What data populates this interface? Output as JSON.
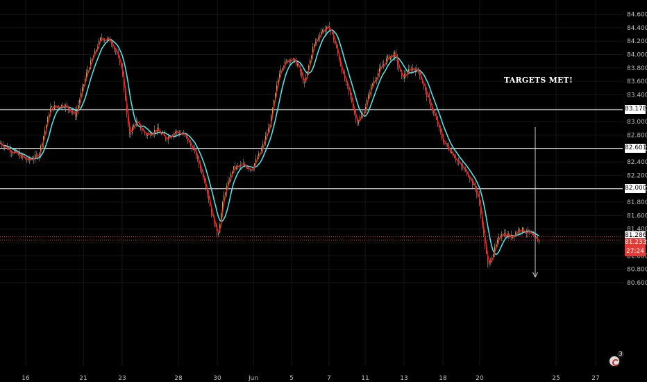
{
  "chart_data": {
    "type": "candlestick",
    "title": "",
    "xlabel": "",
    "ylabel": "",
    "ylim": [
      80.46,
      84.68
    ],
    "grid": true,
    "x_tick_labels": [
      "16",
      "21",
      "23",
      "28",
      "30",
      "Jun",
      "5",
      "7",
      "11",
      "13",
      "18",
      "20",
      "25",
      "27"
    ],
    "y_tick_labels": [
      "84.600",
      "84.400",
      "84.200",
      "84.000",
      "83.800",
      "83.600",
      "83.400",
      "83.200",
      "83.000",
      "82.800",
      "82.600",
      "82.400",
      "82.200",
      "82.000",
      "81.800",
      "81.600",
      "81.400",
      "81.200",
      "81.000",
      "80.800",
      "80.600"
    ],
    "horizontal_levels": [
      83.178,
      82.601,
      82.0
    ],
    "level_labels": [
      "83.178",
      "82.601",
      "82.000"
    ],
    "red_lines": [
      81.286,
      81.233
    ],
    "price_tags": {
      "upper": "81.286",
      "current": "81.233",
      "countdown": "27:24"
    },
    "annotation": "TARGETS MET!",
    "path_waypoints": [
      [
        0,
        82.68
      ],
      [
        18,
        82.55
      ],
      [
        40,
        82.42
      ],
      [
        55,
        82.5
      ],
      [
        72,
        83.2
      ],
      [
        92,
        83.25
      ],
      [
        108,
        83.1
      ],
      [
        125,
        83.75
      ],
      [
        145,
        84.25
      ],
      [
        160,
        84.2
      ],
      [
        175,
        83.8
      ],
      [
        185,
        82.8
      ],
      [
        195,
        83.0
      ],
      [
        210,
        82.8
      ],
      [
        225,
        82.88
      ],
      [
        238,
        82.75
      ],
      [
        252,
        82.85
      ],
      [
        265,
        82.8
      ],
      [
        280,
        82.55
      ],
      [
        295,
        82.1
      ],
      [
        305,
        81.6
      ],
      [
        313,
        81.3
      ],
      [
        322,
        81.9
      ],
      [
        335,
        82.3
      ],
      [
        350,
        82.35
      ],
      [
        362,
        82.3
      ],
      [
        375,
        82.55
      ],
      [
        388,
        82.95
      ],
      [
        403,
        83.8
      ],
      [
        418,
        83.95
      ],
      [
        428,
        83.85
      ],
      [
        438,
        83.55
      ],
      [
        450,
        84.1
      ],
      [
        462,
        84.35
      ],
      [
        475,
        84.4
      ],
      [
        485,
        84.05
      ],
      [
        495,
        83.65
      ],
      [
        505,
        83.35
      ],
      [
        513,
        83.0
      ],
      [
        522,
        83.1
      ],
      [
        535,
        83.55
      ],
      [
        548,
        83.8
      ],
      [
        558,
        83.95
      ],
      [
        568,
        84.0
      ],
      [
        578,
        83.65
      ],
      [
        593,
        83.8
      ],
      [
        603,
        83.75
      ],
      [
        612,
        83.45
      ],
      [
        625,
        83.1
      ],
      [
        638,
        82.7
      ],
      [
        650,
        82.55
      ],
      [
        662,
        82.35
      ],
      [
        675,
        82.2
      ],
      [
        688,
        81.9
      ],
      [
        695,
        81.4
      ],
      [
        702,
        80.85
      ],
      [
        710,
        81.05
      ],
      [
        722,
        81.35
      ],
      [
        735,
        81.28
      ],
      [
        748,
        81.4
      ],
      [
        760,
        81.35
      ],
      [
        770,
        81.25
      ],
      [
        776,
        81.22
      ]
    ],
    "series": [
      {
        "color": "#ff1a1a",
        "role": "fast moving average"
      },
      {
        "color": "#4fe3e3",
        "role": "slow moving average"
      }
    ],
    "candle_colors": {
      "up": "#8bc34a",
      "down": "#e53935",
      "wick": "#9e9e9e"
    }
  }
}
